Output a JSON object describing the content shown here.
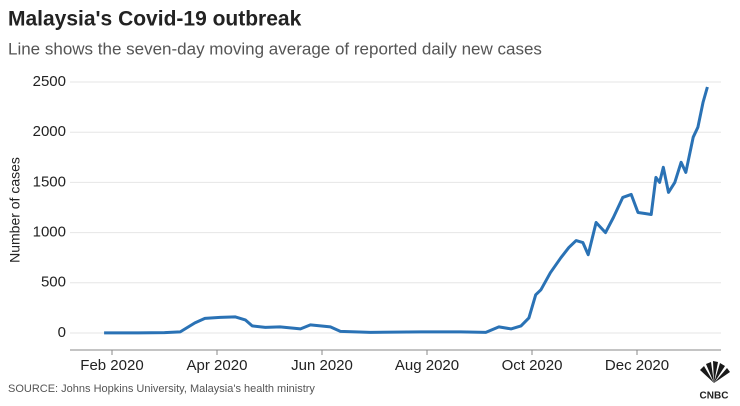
{
  "chart_data": {
    "type": "line",
    "title": "Malaysia's Covid-19 outbreak",
    "subtitle": "Line shows the seven-day moving average of reported daily new cases",
    "y_label": "Number of cases",
    "source": "SOURCE: Johns Hopkins University, Malaysia's health ministry",
    "logo": "CNBC",
    "xlim": [
      1.2,
      13.6
    ],
    "ylim": [
      -170,
      2560
    ],
    "xticks": [
      {
        "value": 2,
        "label": "Feb 2020"
      },
      {
        "value": 4,
        "label": "Apr 2020"
      },
      {
        "value": 6,
        "label": "Jun 2020"
      },
      {
        "value": 8,
        "label": "Aug 2020"
      },
      {
        "value": 10,
        "label": "Oct 2020"
      },
      {
        "value": 12,
        "label": "Dec 2020"
      }
    ],
    "yticks": [
      0,
      500,
      1000,
      1500,
      2000,
      2500
    ],
    "grid": true,
    "series": [
      {
        "name": "Seven-day moving average",
        "color": "#2a72b5",
        "x": [
          1.85,
          2.5,
          3.0,
          3.3,
          3.58,
          3.77,
          4.06,
          4.35,
          4.54,
          4.67,
          4.92,
          5.2,
          5.59,
          5.78,
          5.97,
          6.16,
          6.35,
          6.92,
          7.88,
          8.64,
          9.12,
          9.37,
          9.6,
          9.79,
          9.94,
          10.07,
          10.17,
          10.35,
          10.55,
          10.7,
          10.84,
          10.97,
          11.07,
          11.22,
          11.4,
          11.55,
          11.73,
          11.89,
          12.02,
          12.15,
          12.27,
          12.36,
          12.43,
          12.5,
          12.6,
          12.72,
          12.84,
          12.93,
          13.07,
          13.16,
          13.26,
          13.34
        ],
        "values": [
          0,
          0,
          3,
          10,
          100,
          145,
          155,
          160,
          130,
          70,
          55,
          60,
          40,
          80,
          70,
          60,
          15,
          5,
          10,
          10,
          5,
          60,
          40,
          70,
          150,
          380,
          430,
          600,
          750,
          850,
          920,
          900,
          780,
          1100,
          1000,
          1150,
          1350,
          1380,
          1200,
          1190,
          1180,
          1550,
          1500,
          1650,
          1400,
          1500,
          1700,
          1600,
          1950,
          2050,
          2300,
          2450
        ]
      }
    ]
  }
}
